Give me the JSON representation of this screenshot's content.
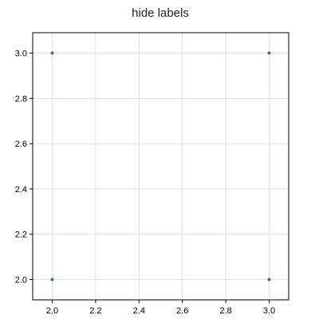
{
  "chart_data": {
    "type": "scatter",
    "title": "hide labels",
    "xlabel": "",
    "ylabel": "",
    "x": [
      2.0,
      3.0,
      2.0,
      3.0
    ],
    "y": [
      2.0,
      2.0,
      3.0,
      3.0
    ],
    "xlim": [
      1.91,
      3.09
    ],
    "ylim": [
      1.91,
      3.09
    ],
    "xticks": [
      2.0,
      2.2,
      2.4,
      2.6,
      2.8,
      3.0
    ],
    "yticks": [
      2.0,
      2.2,
      2.4,
      2.6,
      2.8,
      3.0
    ],
    "xtick_labels": [
      "2.0",
      "2.2",
      "2.4",
      "2.6",
      "2.8",
      "3.0"
    ],
    "ytick_labels": [
      "2.0",
      "2.2",
      "2.4",
      "2.6",
      "2.8",
      "3.0"
    ],
    "grid": true,
    "point_color": "#1f77b4"
  }
}
